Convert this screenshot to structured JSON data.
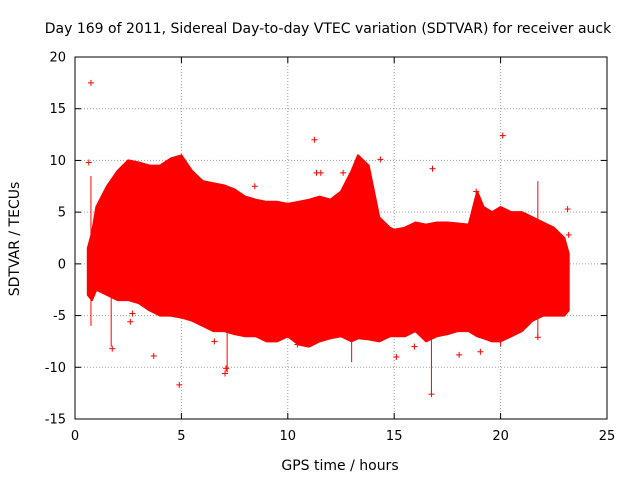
{
  "chart_data": {
    "type": "scatter",
    "title": "Day 169 of 2011, Sidereal Day-to-day VTEC variation (SDTVAR) for receiver auck",
    "xlabel": "GPS time / hours",
    "ylabel": "SDTVAR / TECUs",
    "xlim": [
      0,
      25
    ],
    "ylim": [
      -15,
      20
    ],
    "xticks": [
      0,
      5,
      10,
      15,
      20,
      25
    ],
    "yticks": [
      -15,
      -10,
      -5,
      0,
      5,
      10,
      15,
      20
    ],
    "grid": true,
    "marker": "+",
    "color": "#ff0000",
    "envelope": {
      "x": [
        0.6,
        0.8,
        1.0,
        1.5,
        2.0,
        2.5,
        3.0,
        3.5,
        4.0,
        4.5,
        5.0,
        5.5,
        6.0,
        6.5,
        7.0,
        7.5,
        8.0,
        8.5,
        9.0,
        9.5,
        10.0,
        10.5,
        11.0,
        11.5,
        12.0,
        12.5,
        13.0,
        13.3,
        13.8,
        14.3,
        14.8,
        15.0,
        15.5,
        16.0,
        16.5,
        17.0,
        17.5,
        18.0,
        18.5,
        18.9,
        19.2,
        19.6,
        20.0,
        20.5,
        21.0,
        21.5,
        22.0,
        22.5,
        23.0,
        23.2
      ],
      "upper": [
        1.5,
        3.0,
        5.5,
        7.5,
        9.0,
        10.0,
        9.8,
        9.5,
        9.5,
        10.2,
        10.5,
        9.0,
        8.0,
        7.8,
        7.6,
        7.2,
        6.5,
        6.2,
        6.0,
        6.0,
        5.8,
        6.0,
        6.2,
        6.5,
        6.2,
        7.0,
        9.0,
        10.5,
        9.5,
        4.5,
        3.5,
        3.3,
        3.5,
        4.0,
        3.8,
        4.0,
        4.0,
        3.9,
        3.8,
        7.0,
        5.5,
        5.0,
        5.5,
        5.0,
        5.0,
        4.5,
        4.0,
        3.5,
        2.5,
        1.0
      ],
      "lower": [
        -3.0,
        -3.5,
        -2.5,
        -3.0,
        -3.5,
        -3.5,
        -3.8,
        -4.5,
        -5.0,
        -5.0,
        -5.2,
        -5.5,
        -6.0,
        -6.5,
        -6.5,
        -6.8,
        -7.0,
        -7.0,
        -7.5,
        -7.5,
        -7.0,
        -7.8,
        -8.0,
        -7.5,
        -7.2,
        -7.0,
        -7.5,
        -7.2,
        -7.3,
        -7.5,
        -7.0,
        -7.0,
        -7.0,
        -6.5,
        -7.5,
        -7.0,
        -6.8,
        -6.5,
        -6.5,
        -7.0,
        -7.2,
        -7.5,
        -7.5,
        -7.0,
        -6.5,
        -5.5,
        -5.0,
        -5.0,
        -5.0,
        -4.5
      ]
    },
    "outliers": {
      "x": [
        0.75,
        0.65,
        1.75,
        2.6,
        2.7,
        3.7,
        4.9,
        7.05,
        7.1,
        8.45,
        11.25,
        11.35,
        11.55,
        12.6,
        13.0,
        13.6,
        14.35,
        15.1,
        16.75,
        16.8,
        18.05,
        18.85,
        19.05,
        20.1,
        21.75,
        23.15,
        23.2,
        15.95,
        10.45,
        6.55
      ],
      "y": [
        17.5,
        9.8,
        -8.2,
        -5.6,
        -4.8,
        -8.9,
        -11.7,
        -10.6,
        -10.1,
        7.5,
        12.0,
        8.8,
        8.8,
        8.8,
        8.7,
        9.5,
        10.1,
        -9.0,
        -12.6,
        9.2,
        -8.8,
        7.0,
        -8.5,
        12.4,
        -7.1,
        5.3,
        2.8,
        -8.0,
        -7.8,
        -7.5
      ]
    },
    "spikes": {
      "x": [
        0.75,
        1.7,
        7.15,
        13.0,
        16.75,
        20.0,
        21.75
      ],
      "y_low": [
        -6.0,
        -8.0,
        -10.5,
        -9.5,
        -12.5,
        -8.0,
        -7.0
      ],
      "y_high": [
        8.5,
        7.0,
        3.0,
        8.0,
        2.5,
        5.0,
        8.0
      ]
    }
  }
}
